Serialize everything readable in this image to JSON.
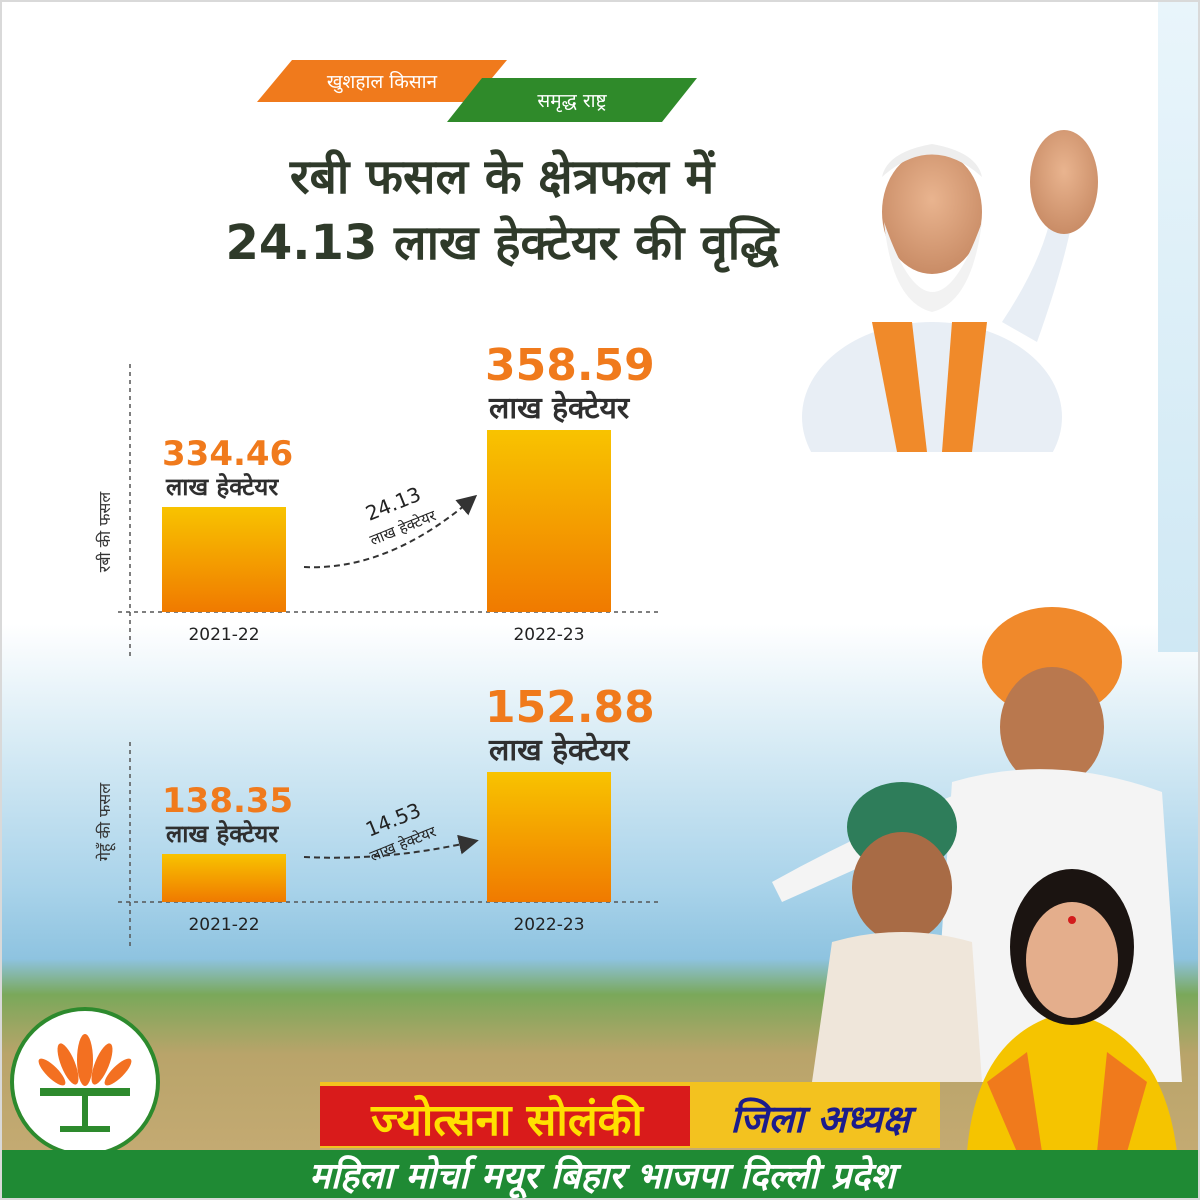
{
  "header": {
    "tag_left": "खुशहाल किसान",
    "tag_right": "समृद्ध राष्ट्र",
    "headline_line1": "रबी फसल के क्षेत्रफल में",
    "headline_line2": "24.13 लाख हेक्टेयर की वृद्धि"
  },
  "chart_data": [
    {
      "type": "bar",
      "ylabel": "रबी की फसल",
      "categories": [
        "2021-22",
        "2022-23"
      ],
      "values": [
        334.46,
        358.59
      ],
      "value_labels": [
        "334.46",
        "358.59"
      ],
      "unit_label": "लाख हेक्टेयर",
      "increase": {
        "value": "24.13",
        "unit": "लाख हेक्टेयर"
      }
    },
    {
      "type": "bar",
      "ylabel": "गेहूँ की फसल",
      "categories": [
        "2021-22",
        "2022-23"
      ],
      "values": [
        138.35,
        152.88
      ],
      "value_labels": [
        "138.35",
        "152.88"
      ],
      "unit_label": "लाख हेक्टेयर",
      "increase": {
        "value": "14.53",
        "unit": "लाख हेक्टेयर"
      }
    }
  ],
  "footer": {
    "name": "ज्योत्सना सोलंकी",
    "role": "जिला अध्यक्ष",
    "organization": "महिला मोर्चा मयूर बिहार भाजपा दिल्ली प्रदेश"
  },
  "colors": {
    "orange": "#f07a1c",
    "green": "#2f8a2a",
    "bar_top": "#f8c300",
    "bar_bottom": "#f07a00",
    "value_label": "#f07a1c",
    "text_dark": "#2f2f2f"
  }
}
